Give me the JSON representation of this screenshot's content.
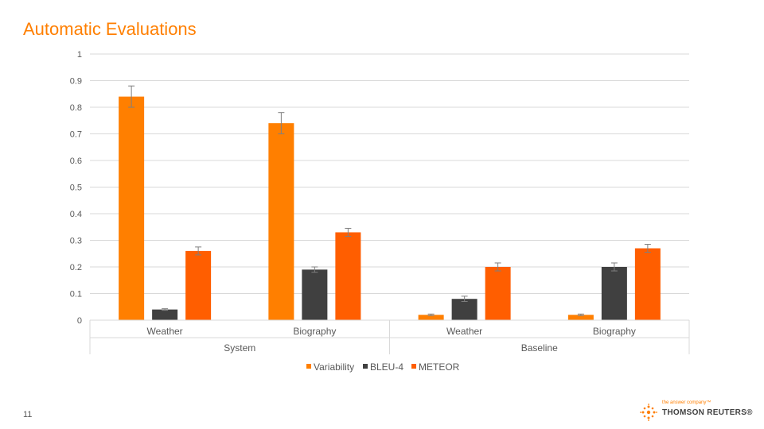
{
  "slide": {
    "title": "Automatic Evaluations",
    "page_number": "11"
  },
  "brand": {
    "tagline": "the answer company™",
    "name": "THOMSON REUTERS®",
    "logo_icon": "thomson-reuters-logo-icon"
  },
  "colors": {
    "variability": "#ff7f00",
    "bleu4": "#404040",
    "meteor": "#ff5e00",
    "title": "#ff7f00",
    "grid": "#d9d9d9",
    "text": "#595959"
  },
  "chart_data": {
    "type": "bar",
    "title": "",
    "xlabel": "",
    "ylabel": "",
    "ylim": [
      0,
      1
    ],
    "yticks": [
      "0",
      "0.1",
      "0.2",
      "0.3",
      "0.4",
      "0.5",
      "0.6",
      "0.7",
      "0.8",
      "0.9",
      "1"
    ],
    "grid": true,
    "legend_position": "bottom",
    "groups": [
      {
        "label": "System",
        "categories": [
          "Weather",
          "Biography"
        ]
      },
      {
        "label": "Baseline",
        "categories": [
          "Weather",
          "Biography"
        ]
      }
    ],
    "categories": [
      "Weather",
      "Biography",
      "Weather",
      "Biography"
    ],
    "series": [
      {
        "name": "Variability",
        "values": [
          0.84,
          0.74,
          0.02,
          0.02
        ],
        "error": [
          0.04,
          0.04,
          0.003,
          0.003
        ]
      },
      {
        "name": "BLEU-4",
        "values": [
          0.04,
          0.19,
          0.08,
          0.2
        ],
        "error": [
          0.003,
          0.01,
          0.01,
          0.015
        ]
      },
      {
        "name": "METEOR",
        "values": [
          0.26,
          0.33,
          0.2,
          0.27
        ],
        "error": [
          0.015,
          0.015,
          0.015,
          0.015
        ]
      }
    ]
  }
}
